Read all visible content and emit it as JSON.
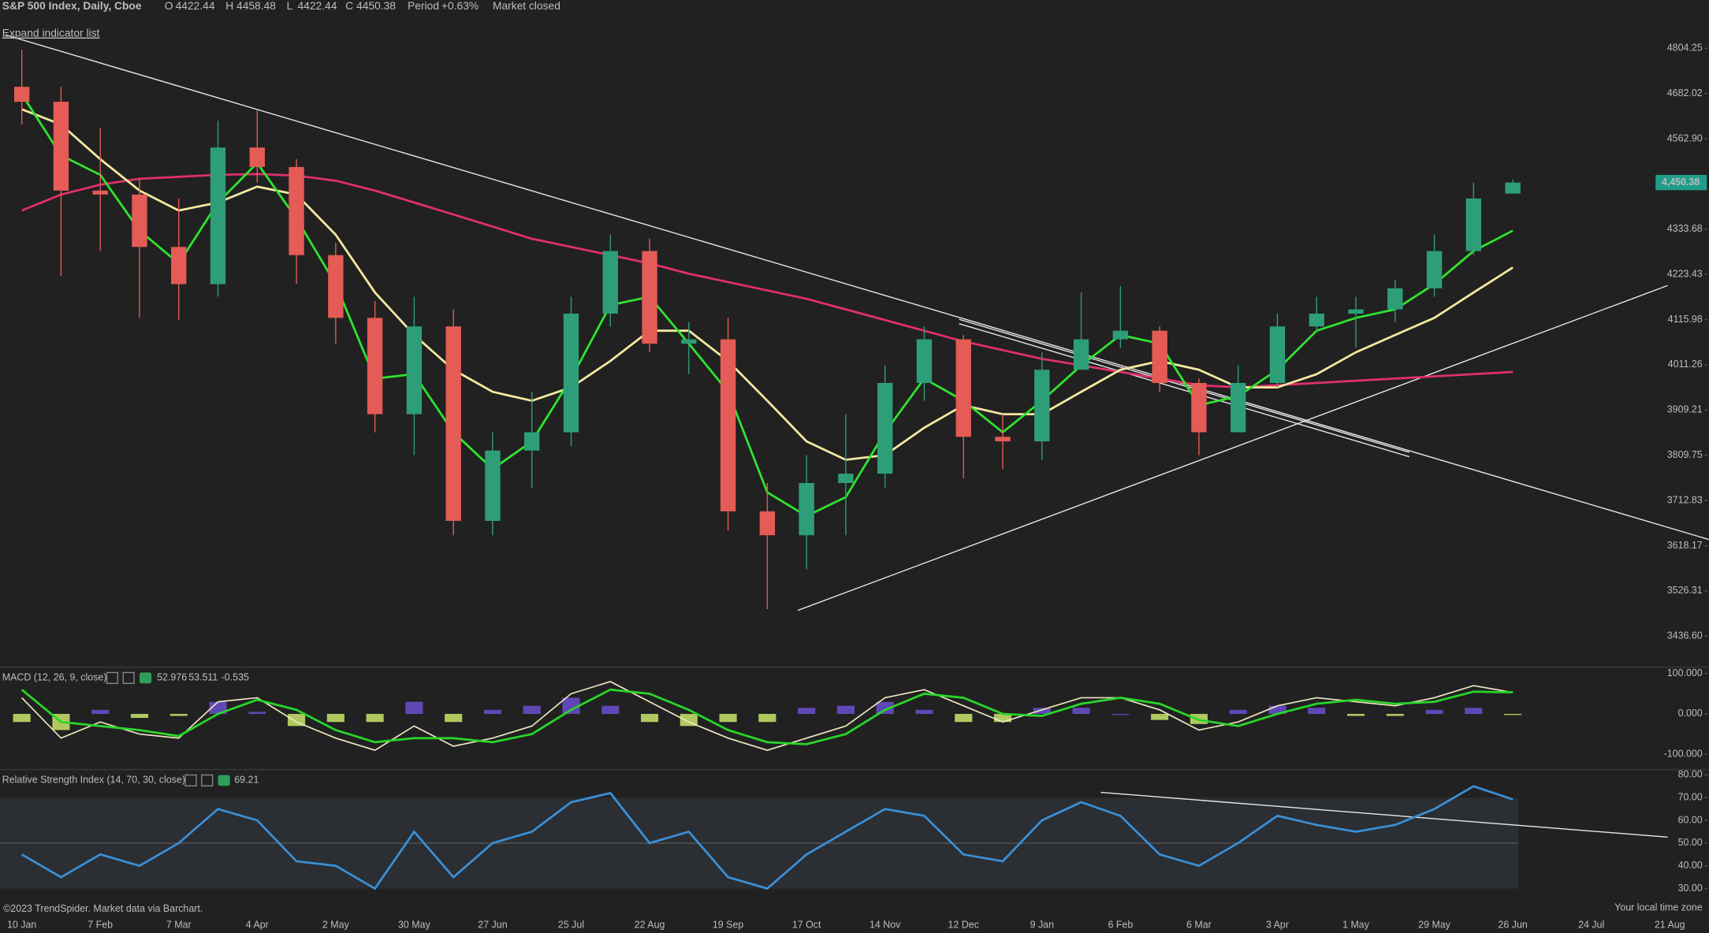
{
  "header": {
    "symbol": "S&P 500 Index, Daily, Cboe",
    "o_label": "O",
    "h_label": "H",
    "l_label": "L",
    "c_label": "C",
    "period_label": "Period",
    "period_change": "+0.63%",
    "status": "Market closed",
    "expand": "Expand indicator list",
    "footer": "©2023 TrendSpider. Market data via Barchart.",
    "timezone": "Your local time zone",
    "x_labels": [
      "10 Jan",
      "7 Feb",
      "7 Mar",
      "4 Apr",
      "2 May",
      "30 May",
      "27 Jun",
      "25 Jul",
      "22 Aug",
      "19 Sep",
      "17 Oct",
      "14 Nov",
      "12 Dec",
      "9 Jan",
      "6 Feb",
      "6 Mar",
      "3 Apr",
      "1 May",
      "29 May",
      "26 Jun",
      "24 Jul",
      "21 Aug"
    ]
  },
  "chart_data": [
    {
      "type": "candlestick",
      "log_scale": true,
      "up_color": "#2e9e78",
      "down_color": "#e45c55",
      "ylim": [
        3380.8,
        4895.5
      ],
      "yticks": [
        4804.25,
        4682.02,
        {
          "value": 4562.9,
          "label": "4562.90"
        },
        4333.68,
        4223.43,
        4115.98,
        4011.26,
        3909.21,
        3809.75,
        3712.83,
        3618.17,
        3526.31,
        {
          "value": 3436.6,
          "label": "3436.60"
        }
      ],
      "last_label": "4,450.38",
      "open": [
        4700,
        4660,
        4430,
        4420,
        4290,
        4200,
        4540,
        4490,
        4270,
        4120,
        3900,
        4100,
        3670,
        3820,
        3860,
        4130,
        4280,
        4060,
        4070,
        3690,
        3640,
        3750,
        3770,
        3970,
        4070,
        3850,
        3840,
        4000,
        4070,
        4090,
        3970,
        3860,
        3970,
        4100,
        4130,
        4140,
        4190,
        4280,
        4422.44
      ],
      "high": [
        4800,
        4700,
        4590,
        4460,
        4410,
        4610,
        4637,
        4510,
        4300,
        4160,
        4170,
        4140,
        3860,
        3950,
        4170,
        4320,
        4310,
        4110,
        4120,
        3750,
        3810,
        3900,
        4010,
        4100,
        4080,
        3900,
        4040,
        4180,
        4195,
        4100,
        3980,
        4010,
        4130,
        4170,
        4170,
        4210,
        4320,
        4450,
        4458.48
      ],
      "low": [
        4600,
        4220,
        4280,
        4120,
        4115,
        4170,
        4450,
        4200,
        4060,
        3860,
        3810,
        3640,
        3640,
        3740,
        3830,
        4100,
        4040,
        3990,
        3650,
        3490,
        3570,
        3640,
        3740,
        3930,
        3760,
        3780,
        3800,
        4000,
        4050,
        3950,
        3810,
        3860,
        3960,
        4090,
        4050,
        4110,
        4170,
        4270,
        4422.44
      ],
      "close": [
        4660,
        4430,
        4420,
        4290,
        4200,
        4540,
        4490,
        4270,
        4120,
        3900,
        4100,
        3670,
        3820,
        3860,
        4130,
        4280,
        4060,
        4070,
        3690,
        3640,
        3750,
        3770,
        3970,
        4070,
        3850,
        3840,
        4000,
        4070,
        4090,
        3970,
        3860,
        3970,
        4100,
        4130,
        4140,
        4190,
        4280,
        4410,
        4450.38
      ],
      "series": [
        {
          "color": "#e0306a",
          "values": [
            4380,
            4420,
            4445,
            4460,
            4465,
            4470,
            4472,
            4468,
            4455,
            4430,
            4400,
            4370,
            4340,
            4310,
            4290,
            4270,
            4250,
            4225,
            4205,
            4185,
            4165,
            4140,
            4115,
            4090,
            4065,
            4045,
            4025,
            4010,
            3995,
            3980,
            3965,
            3960,
            3965,
            3970,
            3975,
            3980,
            3985,
            3990,
            3995
          ]
        },
        {
          "color": "#f5e9a0",
          "values": [
            4640,
            4600,
            4510,
            4430,
            4380,
            4400,
            4440,
            4420,
            4320,
            4180,
            4080,
            4000,
            3950,
            3930,
            3960,
            4020,
            4090,
            4090,
            4020,
            3930,
            3840,
            3800,
            3810,
            3870,
            3920,
            3900,
            3900,
            3950,
            4000,
            4020,
            4000,
            3960,
            3960,
            3990,
            4040,
            4080,
            4120,
            4180,
            4240
          ]
        },
        {
          "color": "#2ee52e",
          "values": [
            4680,
            4520,
            4470,
            4330,
            4250,
            4400,
            4500,
            4360,
            4200,
            3980,
            3990,
            3860,
            3780,
            3840,
            3980,
            4150,
            4170,
            4060,
            3950,
            3730,
            3680,
            3720,
            3860,
            3980,
            3930,
            3860,
            3930,
            4010,
            4080,
            4060,
            3920,
            3940,
            4000,
            4090,
            4120,
            4140,
            4200,
            4280,
            4330
          ]
        }
      ]
    },
    {
      "type": "macd",
      "title": "MACD (12, 26, 9, close)",
      "ylim": [
        -135,
        116
      ],
      "yticks": [
        {
          "value": 100,
          "label": "100.000"
        },
        {
          "value": 0,
          "label": "0.000"
        },
        {
          "value": -100,
          "label": "-100.000"
        }
      ],
      "series": [
        {
          "kind": "line",
          "color": "#f0e6c0",
          "values": [
            40,
            -60,
            -20,
            -50,
            -60,
            30,
            40,
            -20,
            -60,
            -90,
            -30,
            -80,
            -60,
            -30,
            50,
            80,
            30,
            -20,
            -60,
            -90,
            -60,
            -30,
            40,
            60,
            20,
            -20,
            10,
            40,
            40,
            10,
            -40,
            -20,
            20,
            40,
            30,
            20,
            40,
            70,
            52.976
          ]
        },
        {
          "kind": "line",
          "color": "#28d628",
          "values": [
            60,
            -20,
            -30,
            -40,
            -55,
            0,
            35,
            10,
            -40,
            -70,
            -60,
            -60,
            -70,
            -50,
            10,
            60,
            50,
            10,
            -40,
            -70,
            -75,
            -50,
            10,
            50,
            40,
            0,
            -5,
            25,
            40,
            25,
            -15,
            -30,
            0,
            25,
            35,
            25,
            30,
            55,
            53.511
          ]
        },
        {
          "kind": "histogram",
          "up_color": "#6a4fcf",
          "down_color": "#c8e66b",
          "values": [
            -20,
            -40,
            10,
            -10,
            -5,
            30,
            5,
            -30,
            -20,
            -20,
            30,
            -20,
            10,
            20,
            40,
            20,
            -20,
            -30,
            -20,
            -20,
            15,
            20,
            30,
            10,
            -20,
            -20,
            15,
            15,
            0,
            -15,
            -25,
            10,
            20,
            15,
            -5,
            -5,
            10,
            15,
            -0.535
          ]
        }
      ]
    },
    {
      "type": "line",
      "title": "Relative Strength Index (14, 70, 30, close)",
      "ylim": [
        18.1,
        81.9
      ],
      "yticks": [
        {
          "value": 80,
          "label": "80.00"
        },
        {
          "value": 70,
          "label": "70.00"
        },
        {
          "value": 60,
          "label": "60.00"
        },
        {
          "value": 50,
          "label": "50.00"
        },
        {
          "value": 40,
          "label": "40.00"
        },
        {
          "value": 30,
          "label": "30.00"
        }
      ],
      "series": [
        {
          "kind": "line",
          "color": "#3a8fd6",
          "values": [
            45,
            35,
            45,
            40,
            50,
            65,
            60,
            42,
            40,
            30,
            55,
            35,
            50,
            55,
            68,
            72,
            50,
            55,
            35,
            30,
            45,
            55,
            65,
            62,
            45,
            42,
            60,
            68,
            62,
            45,
            40,
            50,
            62,
            58,
            55,
            58,
            65,
            75,
            69.21
          ]
        }
      ]
    }
  ]
}
